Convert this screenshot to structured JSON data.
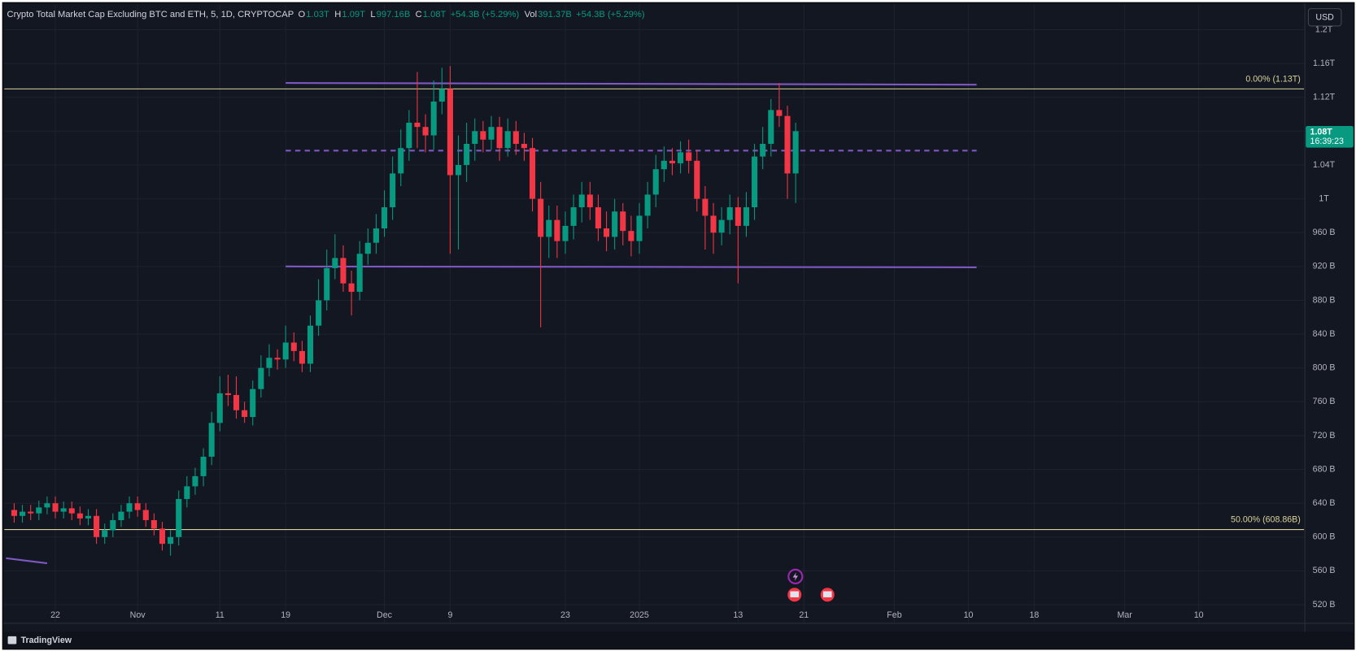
{
  "header": {
    "title": "Crypto Total Market Cap Excluding BTC and ETH, 5, 1D, CRYPTOCAP",
    "ohlc": [
      [
        "O",
        "1.03T"
      ],
      [
        "H",
        "1.09T"
      ],
      [
        "L",
        "997.16B"
      ],
      [
        "C",
        "1.08T"
      ]
    ],
    "change": "+54.3B (+5.29%)",
    "volume": [
      "Vol",
      "391.37B"
    ],
    "volume_change": "+54.3B (+5.29%)",
    "currency": "USD"
  },
  "footer": {
    "brand": "TradingView"
  },
  "chart_data": {
    "type": "candlestick",
    "up_color": "#089981",
    "down_color": "#f23645",
    "grid": true,
    "x": [
      -5,
      -4,
      -3,
      -2,
      -1,
      0,
      1,
      2,
      3,
      4,
      5,
      6,
      7,
      8,
      9,
      10,
      11,
      12,
      13,
      14,
      15,
      16,
      17,
      18,
      19,
      20,
      21,
      22,
      23,
      24,
      25,
      26,
      27,
      28,
      29,
      30,
      31,
      32,
      33,
      34,
      35,
      36,
      37,
      38,
      39,
      40,
      41,
      42,
      43,
      44,
      45,
      46,
      47,
      48,
      49,
      50,
      51,
      52,
      53,
      54,
      55,
      56,
      57,
      58,
      59,
      60,
      61,
      62,
      63,
      64,
      65,
      66,
      67,
      68,
      69,
      70,
      71,
      72,
      73,
      74,
      75,
      76,
      77,
      78,
      79,
      80,
      81,
      82,
      83,
      84,
      85,
      86,
      87,
      88,
      89,
      90
    ],
    "open": [
      632,
      625,
      630,
      628,
      635,
      640,
      630,
      634,
      628,
      622,
      625,
      600,
      608,
      620,
      630,
      640,
      632,
      620,
      610,
      592,
      600,
      645,
      660,
      672,
      695,
      735,
      770,
      768,
      750,
      742,
      775,
      800,
      812,
      810,
      830,
      820,
      805,
      850,
      880,
      918,
      930,
      900,
      890,
      935,
      948,
      965,
      990,
      1030,
      1060,
      1090,
      1085,
      1075,
      1115,
      1130,
      1028,
      1040,
      1065,
      1080,
      1070,
      1085,
      1060,
      1080,
      1065,
      1060,
      1000,
      955,
      975,
      950,
      968,
      990,
      1005,
      990,
      965,
      955,
      985,
      962,
      950,
      980,
      1005,
      1035,
      1045,
      1042,
      1055,
      1045,
      1000,
      980,
      960,
      975,
      990,
      968,
      990,
      1050,
      1065,
      1105,
      1098,
      1030
    ],
    "high": [
      640,
      638,
      638,
      643,
      648,
      648,
      642,
      642,
      636,
      633,
      633,
      616,
      628,
      638,
      648,
      648,
      640,
      628,
      618,
      608,
      655,
      672,
      682,
      705,
      748,
      790,
      792,
      790,
      760,
      785,
      815,
      828,
      822,
      850,
      842,
      832,
      862,
      905,
      940,
      958,
      945,
      915,
      950,
      965,
      982,
      1010,
      1050,
      1082,
      1105,
      1150,
      1100,
      1140,
      1155,
      1157,
      1075,
      1090,
      1095,
      1092,
      1098,
      1097,
      1095,
      1092,
      1078,
      1072,
      1020,
      992,
      992,
      985,
      1005,
      1020,
      1020,
      1005,
      985,
      1000,
      995,
      980,
      995,
      1020,
      1052,
      1062,
      1060,
      1068,
      1070,
      1058,
      1015,
      995,
      990,
      1005,
      1002,
      1008,
      1065,
      1085,
      1118,
      1137,
      1110,
      1090
    ],
    "low": [
      617,
      617,
      620,
      620,
      627,
      622,
      622,
      620,
      614,
      614,
      592,
      592,
      600,
      612,
      622,
      624,
      612,
      602,
      584,
      578,
      590,
      635,
      650,
      660,
      685,
      725,
      755,
      740,
      735,
      732,
      765,
      790,
      798,
      800,
      808,
      795,
      795,
      838,
      868,
      905,
      890,
      862,
      880,
      922,
      935,
      955,
      975,
      1015,
      1045,
      1060,
      1055,
      1058,
      1100,
      935,
      940,
      1020,
      1045,
      1055,
      1058,
      1045,
      1050,
      1052,
      1045,
      985,
      848,
      930,
      930,
      935,
      952,
      972,
      975,
      950,
      938,
      940,
      945,
      932,
      935,
      965,
      990,
      1020,
      1028,
      1030,
      1030,
      985,
      940,
      935,
      945,
      958,
      900,
      955,
      975,
      1035,
      1050,
      1085,
      1000,
      995
    ],
    "close": [
      625,
      630,
      628,
      635,
      640,
      630,
      634,
      628,
      622,
      625,
      600,
      608,
      620,
      630,
      640,
      632,
      620,
      610,
      592,
      600,
      645,
      660,
      672,
      695,
      735,
      770,
      768,
      750,
      742,
      775,
      800,
      812,
      810,
      830,
      820,
      805,
      850,
      880,
      918,
      930,
      900,
      890,
      935,
      948,
      965,
      990,
      1030,
      1060,
      1090,
      1085,
      1075,
      1115,
      1130,
      1028,
      1040,
      1065,
      1080,
      1070,
      1085,
      1060,
      1080,
      1065,
      1060,
      1000,
      955,
      975,
      950,
      968,
      990,
      1005,
      990,
      965,
      955,
      985,
      962,
      950,
      980,
      1005,
      1035,
      1045,
      1042,
      1055,
      1045,
      1000,
      980,
      960,
      975,
      990,
      968,
      990,
      1050,
      1065,
      1105,
      1098,
      1030,
      1080
    ],
    "xlim": [
      -6.2,
      151.8
    ],
    "xticks": [
      {
        "value": 0,
        "label": "22"
      },
      {
        "value": 10,
        "label": "Nov"
      },
      {
        "value": 20,
        "label": "11"
      },
      {
        "value": 28,
        "label": "19"
      },
      {
        "value": 40,
        "label": "Dec"
      },
      {
        "value": 48,
        "label": "9"
      },
      {
        "value": 62,
        "label": "23"
      },
      {
        "value": 71,
        "label": "2025"
      },
      {
        "value": 83,
        "label": "13"
      },
      {
        "value": 91,
        "label": "21"
      },
      {
        "value": 102,
        "label": "Feb"
      },
      {
        "value": 111,
        "label": "10"
      },
      {
        "value": 119,
        "label": "18"
      },
      {
        "value": 130,
        "label": "Mar"
      },
      {
        "value": 139,
        "label": "10"
      }
    ],
    "ylim": [
      498,
      1230
    ],
    "yticks": [
      {
        "value": 520,
        "label": "520 B"
      },
      {
        "value": 560,
        "label": "560 B"
      },
      {
        "value": 600,
        "label": "600 B"
      },
      {
        "value": 640,
        "label": "640 B"
      },
      {
        "value": 680,
        "label": "680 B"
      },
      {
        "value": 720,
        "label": "720 B"
      },
      {
        "value": 760,
        "label": "760 B"
      },
      {
        "value": 800,
        "label": "800 B"
      },
      {
        "value": 840,
        "label": "840 B"
      },
      {
        "value": 880,
        "label": "880 B"
      },
      {
        "value": 920,
        "label": "920 B"
      },
      {
        "value": 960,
        "label": "960 B"
      },
      {
        "value": 1000,
        "label": "1T"
      },
      {
        "value": 1040,
        "label": "1.04T"
      },
      {
        "value": 1080,
        "label": "1.08T"
      },
      {
        "value": 1120,
        "label": "1.12T"
      },
      {
        "value": 1160,
        "label": "1.16T"
      },
      {
        "value": 1200,
        "label": "1.2T"
      }
    ],
    "fib_color": "#d8d39a",
    "fib_levels": [
      {
        "level": 1130,
        "label": "0.00% (1.13T)"
      },
      {
        "level": 608.86,
        "label": "50.00% (608.86B)"
      }
    ],
    "trend_color": "#7e57c2",
    "trend_lines": [
      {
        "x": [
          28,
          112
        ],
        "y": [
          1137,
          1135
        ],
        "style": "solid"
      },
      {
        "x": [
          28,
          112
        ],
        "y": [
          1057,
          1057
        ],
        "style": "dashed"
      },
      {
        "x": [
          28,
          112
        ],
        "y": [
          920,
          919
        ],
        "style": "solid"
      },
      {
        "x": [
          -6,
          -1
        ],
        "y": [
          575,
          569
        ],
        "style": "solid"
      }
    ],
    "last_price": {
      "value": 1080,
      "label": "1.08T",
      "countdown": "16:39:23"
    }
  }
}
